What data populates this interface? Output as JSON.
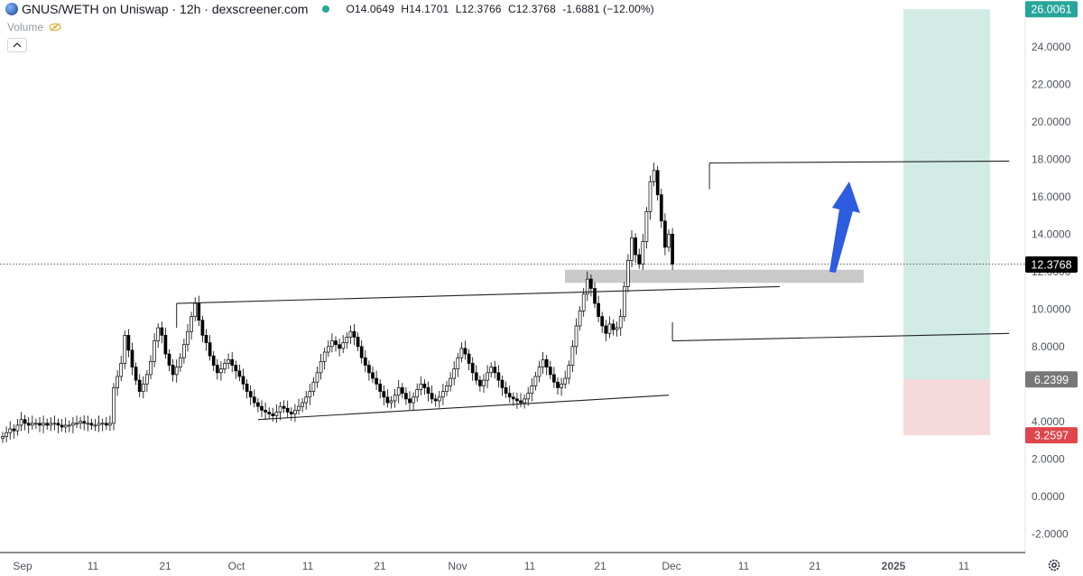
{
  "header": {
    "title": "GNUS/WETH on Uniswap · 12h · dexscreener.com",
    "open_label": "O",
    "open": "14.0649",
    "high_label": "H",
    "high": "14.1701",
    "low_label": "L",
    "low": "12.3766",
    "close_label": "C",
    "close": "12.3768",
    "change": "-1.6881 (−12.00%)",
    "volume_label": "Volume"
  },
  "colors": {
    "candle": "#000000",
    "target_zone": "#d2ebe5",
    "stop_zone": "#f6d9da",
    "arrow": "#2d5ce0",
    "zone_bar": "#c9c9c9",
    "badge_green": "#26a69a",
    "badge_grey": "#777777",
    "badge_red": "#e0454b",
    "badge_black": "#000000"
  },
  "chart_data": {
    "type": "candlestick",
    "ylim": [
      -3,
      26.5
    ],
    "y_ticks": [
      "26.0061",
      "24.0000",
      "22.0000",
      "20.0000",
      "18.0000",
      "16.0000",
      "14.0000",
      "12.0000",
      "10.0000",
      "8.0000",
      "6.2399",
      "4.0000",
      "3.2597",
      "2.0000",
      "0.0000",
      "-2.0000"
    ],
    "x_ticks": [
      "Sep",
      "11",
      "21",
      "Oct",
      "11",
      "21",
      "Nov",
      "11",
      "21",
      "Dec",
      "11",
      "21",
      "2025",
      "11"
    ],
    "price_labels": [
      {
        "value": 26.0061,
        "text": "26.0061",
        "style": "green"
      },
      {
        "value": 12.3768,
        "text": "12.3768",
        "style": "black"
      },
      {
        "value": 6.2399,
        "text": "6.2399",
        "style": "grey"
      },
      {
        "value": 3.2597,
        "text": "3.2597",
        "style": "red"
      }
    ],
    "position": {
      "entry": 6.2399,
      "target": 26.0061,
      "stop": 3.2597
    },
    "candles_close": [
      3.2,
      3.4,
      3.6,
      3.5,
      3.8,
      4.1,
      3.9,
      3.8,
      3.9,
      3.9,
      3.8,
      3.9,
      3.8,
      3.9,
      3.9,
      3.8,
      3.7,
      3.8,
      3.8,
      3.9,
      3.9,
      4.0,
      3.9,
      3.9,
      3.8,
      3.8,
      3.9,
      3.9,
      3.8,
      3.9,
      5.8,
      6.4,
      7.1,
      8.6,
      7.8,
      6.9,
      6.2,
      5.6,
      6.0,
      6.5,
      7.2,
      8.3,
      9.0,
      8.6,
      7.6,
      7.0,
      6.5,
      6.9,
      7.4,
      8.1,
      8.8,
      9.6,
      10.3,
      9.4,
      8.6,
      8.2,
      7.5,
      7.0,
      6.6,
      6.8,
      7.1,
      7.3,
      7.0,
      6.7,
      6.4,
      6.0,
      5.6,
      5.3,
      5.0,
      4.8,
      4.6,
      4.5,
      4.4,
      4.3,
      4.5,
      4.8,
      4.7,
      4.5,
      4.4,
      4.6,
      4.8,
      5.0,
      5.3,
      5.6,
      6.1,
      6.6,
      7.2,
      7.7,
      8.0,
      8.3,
      8.1,
      7.9,
      8.2,
      8.5,
      8.8,
      8.5,
      8.0,
      7.4,
      7.0,
      6.6,
      6.3,
      6.0,
      5.6,
      5.3,
      5.0,
      5.1,
      5.4,
      5.8,
      5.5,
      5.2,
      5.0,
      5.3,
      5.7,
      6.0,
      5.8,
      5.5,
      5.2,
      5.1,
      5.3,
      5.6,
      5.9,
      6.3,
      6.8,
      7.4,
      7.9,
      7.6,
      7.1,
      6.6,
      6.2,
      5.9,
      6.2,
      6.6,
      6.9,
      6.6,
      6.2,
      5.8,
      5.5,
      5.3,
      5.2,
      5.1,
      5.0,
      5.2,
      5.5,
      5.9,
      6.4,
      6.9,
      7.3,
      6.9,
      6.5,
      6.1,
      5.8,
      6.0,
      6.3,
      7.0,
      8.0,
      9.1,
      9.9,
      10.8,
      11.6,
      11.1,
      10.3,
      9.6,
      9.1,
      8.7,
      9.2,
      8.9,
      9.0,
      9.6,
      11.2,
      12.6,
      13.8,
      12.9,
      12.4,
      13.6,
      15.2,
      16.8,
      17.4,
      16.1,
      14.7,
      13.3,
      14.0,
      12.4
    ],
    "lines": [
      {
        "label": "upper channel",
        "from": {
          "candle": 47,
          "value": 10.3
        },
        "to": {
          "candle": 210,
          "value": 11.2
        }
      },
      {
        "label": "lower channel",
        "from": {
          "candle": 69,
          "value": 4.1
        },
        "to": {
          "candle": 180,
          "value": 5.4
        }
      },
      {
        "label": "resistance high",
        "from": {
          "candle": 191,
          "value": 17.8
        },
        "to": {
          "candle": 272,
          "value": 17.9
        }
      },
      {
        "label": "support low",
        "from": {
          "candle": 181,
          "value": 8.3
        },
        "to": {
          "candle": 272,
          "value": 8.7
        }
      }
    ],
    "zone": {
      "from": 11.4,
      "to": 12.1
    },
    "grid": false,
    "legend": "none"
  }
}
